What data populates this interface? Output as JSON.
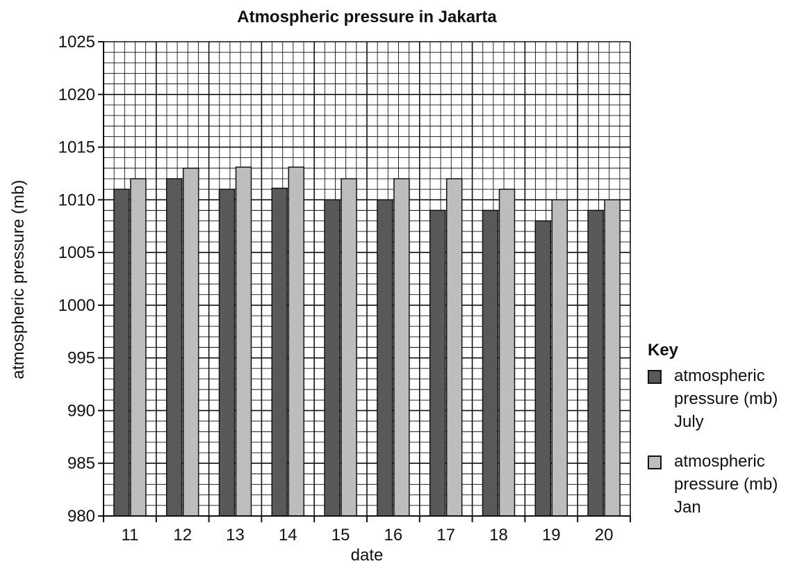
{
  "chart_data": {
    "type": "bar",
    "title": "Atmospheric pressure in Jakarta",
    "xlabel": "date",
    "ylabel": "atmospheric pressure (mb)",
    "categories": [
      "11",
      "12",
      "13",
      "14",
      "15",
      "16",
      "17",
      "18",
      "19",
      "20"
    ],
    "series": [
      {
        "name": "atmospheric pressure (mb) July",
        "color": "#595959",
        "values": [
          1011,
          1012,
          1011,
          1011.1,
          1010,
          1010,
          1009,
          1009,
          1008,
          1009
        ]
      },
      {
        "name": "atmospheric pressure (mb) Jan",
        "color": "#bdbdbd",
        "values": [
          1012,
          1013,
          1013.1,
          1013.1,
          1012,
          1012,
          1012,
          1011,
          1010,
          1010
        ]
      }
    ],
    "ylim": [
      980,
      1025
    ],
    "yticks": [
      "980",
      "985",
      "990",
      "995",
      "1000",
      "1005",
      "1010",
      "1015",
      "1020",
      "1025"
    ],
    "grid": true,
    "legend_position": "right",
    "legend_title": "Key"
  }
}
